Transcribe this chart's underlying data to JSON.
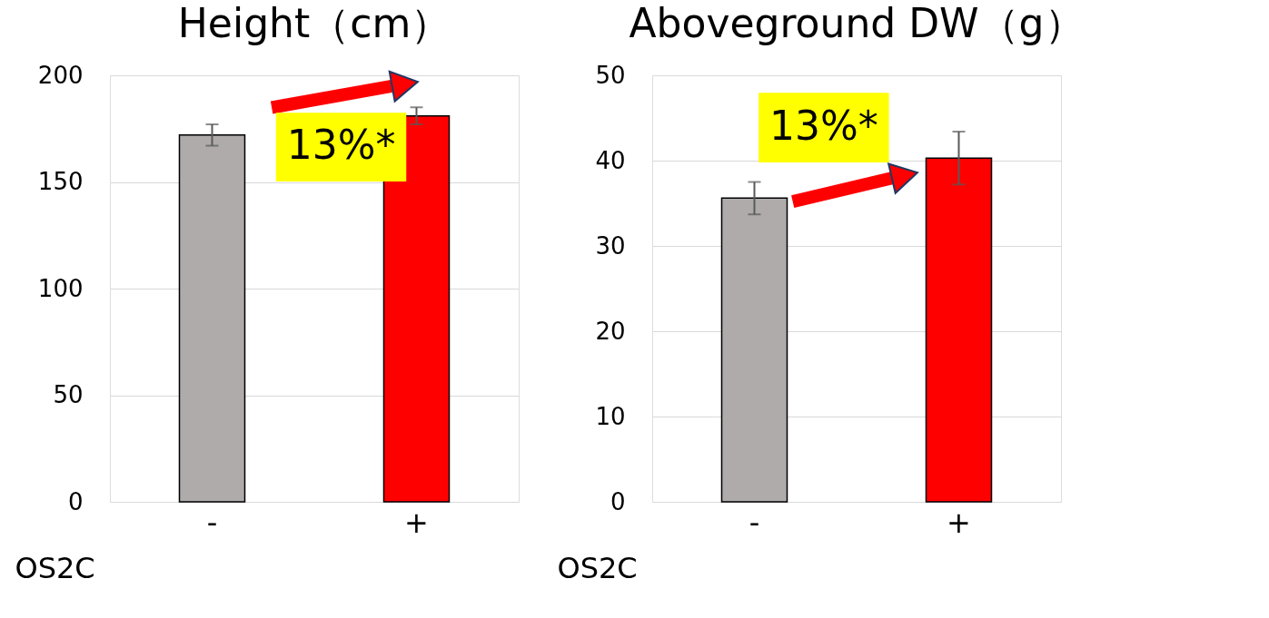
{
  "chart_data": [
    {
      "type": "bar",
      "title": "Height（cm）",
      "xlabel": "OS2C",
      "categories": [
        "-",
        "+"
      ],
      "values": [
        172,
        181
      ],
      "colors": [
        "#afabab",
        "#ff0000"
      ],
      "errors": [
        5,
        4
      ],
      "ylim": [
        0,
        200
      ],
      "yticks": [
        0,
        50,
        100,
        150,
        200
      ],
      "grid": "y",
      "annotations": [
        "13%*"
      ]
    },
    {
      "type": "bar",
      "title": "Aboveground DW（g）",
      "xlabel": "OS2C",
      "categories": [
        "-",
        "+"
      ],
      "values": [
        35.6,
        40.3
      ],
      "colors": [
        "#afabab",
        "#ff0000"
      ],
      "errors": [
        1.9,
        3.1
      ],
      "ylim": [
        0,
        50
      ],
      "yticks": [
        0,
        10,
        20,
        30,
        40,
        50
      ],
      "grid": "y",
      "annotations": [
        "13%*"
      ]
    }
  ]
}
